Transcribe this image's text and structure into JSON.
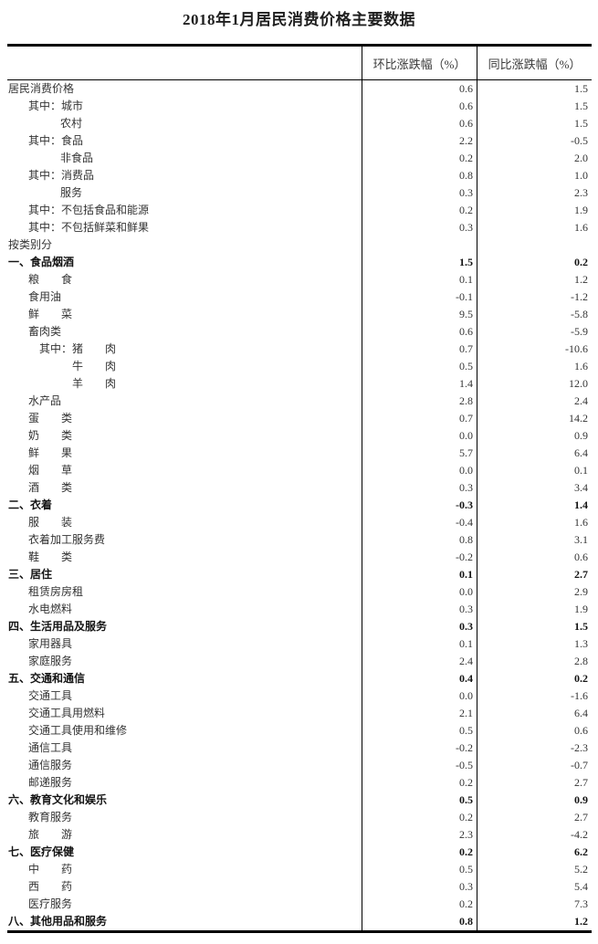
{
  "page": {
    "title": "2018年1月居民消费价格主要数据"
  },
  "colors": {
    "background": "#ffffff",
    "text": "#333333",
    "bold_text": "#141414",
    "border": "#000000"
  },
  "table": {
    "columns": [
      "环比涨跌幅（%）",
      "同比涨跌幅（%）"
    ],
    "rows": [
      {
        "label": "居民消费价格",
        "indent": 0,
        "mom": "0.6",
        "yoy": "1.5",
        "bold": false
      },
      {
        "label": "其中：城市",
        "indent": 1,
        "mom": "0.6",
        "yoy": "1.5",
        "bold": false
      },
      {
        "label": "农村",
        "indent": 2,
        "mom": "0.6",
        "yoy": "1.5",
        "bold": false
      },
      {
        "label": "其中：食品",
        "indent": 1,
        "mom": "2.2",
        "yoy": "-0.5",
        "bold": false
      },
      {
        "label": "非食品",
        "indent": 2,
        "mom": "0.2",
        "yoy": "2.0",
        "bold": false
      },
      {
        "label": "其中：消费品",
        "indent": 1,
        "mom": "0.8",
        "yoy": "1.0",
        "bold": false
      },
      {
        "label": "服务",
        "indent": 2,
        "mom": "0.3",
        "yoy": "2.3",
        "bold": false
      },
      {
        "label": "其中：不包括食品和能源",
        "indent": 1,
        "mom": "0.2",
        "yoy": "1.9",
        "bold": false
      },
      {
        "label": "其中：不包括鲜菜和鲜果",
        "indent": 1,
        "mom": "0.3",
        "yoy": "1.6",
        "bold": false
      },
      {
        "label": "按类别分",
        "indent": 0,
        "mom": "",
        "yoy": "",
        "bold": false
      },
      {
        "label": "一、食品烟酒",
        "indent": 0,
        "mom": "1.5",
        "yoy": "0.2",
        "bold": true
      },
      {
        "label": "粮　　食",
        "indent": 1,
        "mom": "0.1",
        "yoy": "1.2",
        "bold": false
      },
      {
        "label": "食用油",
        "indent": 1,
        "mom": "-0.1",
        "yoy": "-1.2",
        "bold": false
      },
      {
        "label": "鲜　　菜",
        "indent": 1,
        "mom": "9.5",
        "yoy": "-5.8",
        "bold": false
      },
      {
        "label": "畜肉类",
        "indent": 1,
        "mom": "0.6",
        "yoy": "-5.9",
        "bold": false
      },
      {
        "label": "其中：猪　　肉",
        "indent": 3,
        "mom": "0.7",
        "yoy": "-10.6",
        "bold": false
      },
      {
        "label": "牛　　肉",
        "indent": 4,
        "mom": "0.5",
        "yoy": "1.6",
        "bold": false
      },
      {
        "label": "羊　　肉",
        "indent": 4,
        "mom": "1.4",
        "yoy": "12.0",
        "bold": false
      },
      {
        "label": "水产品",
        "indent": 1,
        "mom": "2.8",
        "yoy": "2.4",
        "bold": false
      },
      {
        "label": "蛋　　类",
        "indent": 1,
        "mom": "0.7",
        "yoy": "14.2",
        "bold": false
      },
      {
        "label": "奶　　类",
        "indent": 1,
        "mom": "0.0",
        "yoy": "0.9",
        "bold": false
      },
      {
        "label": "鲜　　果",
        "indent": 1,
        "mom": "5.7",
        "yoy": "6.4",
        "bold": false
      },
      {
        "label": "烟　　草",
        "indent": 1,
        "mom": "0.0",
        "yoy": "0.1",
        "bold": false
      },
      {
        "label": "酒　　类",
        "indent": 1,
        "mom": "0.3",
        "yoy": "3.4",
        "bold": false
      },
      {
        "label": "二、衣着",
        "indent": 0,
        "mom": "-0.3",
        "yoy": "1.4",
        "bold": true
      },
      {
        "label": "服　　装",
        "indent": 1,
        "mom": "-0.4",
        "yoy": "1.6",
        "bold": false
      },
      {
        "label": "衣着加工服务费",
        "indent": 1,
        "mom": "0.8",
        "yoy": "3.1",
        "bold": false
      },
      {
        "label": "鞋　　类",
        "indent": 1,
        "mom": "-0.2",
        "yoy": "0.6",
        "bold": false
      },
      {
        "label": "三、居住",
        "indent": 0,
        "mom": "0.1",
        "yoy": "2.7",
        "bold": true
      },
      {
        "label": "租赁房房租",
        "indent": 1,
        "mom": "0.0",
        "yoy": "2.9",
        "bold": false
      },
      {
        "label": "水电燃料",
        "indent": 1,
        "mom": "0.3",
        "yoy": "1.9",
        "bold": false
      },
      {
        "label": "四、生活用品及服务",
        "indent": 0,
        "mom": "0.3",
        "yoy": "1.5",
        "bold": true
      },
      {
        "label": "家用器具",
        "indent": 1,
        "mom": "0.1",
        "yoy": "1.3",
        "bold": false
      },
      {
        "label": "家庭服务",
        "indent": 1,
        "mom": "2.4",
        "yoy": "2.8",
        "bold": false
      },
      {
        "label": "五、交通和通信",
        "indent": 0,
        "mom": "0.4",
        "yoy": "0.2",
        "bold": true
      },
      {
        "label": "交通工具",
        "indent": 1,
        "mom": "0.0",
        "yoy": "-1.6",
        "bold": false
      },
      {
        "label": "交通工具用燃料",
        "indent": 1,
        "mom": "2.1",
        "yoy": "6.4",
        "bold": false
      },
      {
        "label": "交通工具使用和维修",
        "indent": 1,
        "mom": "0.5",
        "yoy": "0.6",
        "bold": false
      },
      {
        "label": "通信工具",
        "indent": 1,
        "mom": "-0.2",
        "yoy": "-2.3",
        "bold": false
      },
      {
        "label": "通信服务",
        "indent": 1,
        "mom": "-0.5",
        "yoy": "-0.7",
        "bold": false
      },
      {
        "label": "邮递服务",
        "indent": 1,
        "mom": "0.2",
        "yoy": "2.7",
        "bold": false
      },
      {
        "label": "六、教育文化和娱乐",
        "indent": 0,
        "mom": "0.5",
        "yoy": "0.9",
        "bold": true
      },
      {
        "label": "教育服务",
        "indent": 1,
        "mom": "0.2",
        "yoy": "2.7",
        "bold": false
      },
      {
        "label": "旅　　游",
        "indent": 1,
        "mom": "2.3",
        "yoy": "-4.2",
        "bold": false
      },
      {
        "label": "七、医疗保健",
        "indent": 0,
        "mom": "0.2",
        "yoy": "6.2",
        "bold": true
      },
      {
        "label": "中　　药",
        "indent": 1,
        "mom": "0.5",
        "yoy": "5.2",
        "bold": false
      },
      {
        "label": "西　　药",
        "indent": 1,
        "mom": "0.3",
        "yoy": "5.4",
        "bold": false
      },
      {
        "label": "医疗服务",
        "indent": 1,
        "mom": "0.2",
        "yoy": "7.3",
        "bold": false
      },
      {
        "label": "八、其他用品和服务",
        "indent": 0,
        "mom": "0.8",
        "yoy": "1.2",
        "bold": true
      }
    ]
  }
}
